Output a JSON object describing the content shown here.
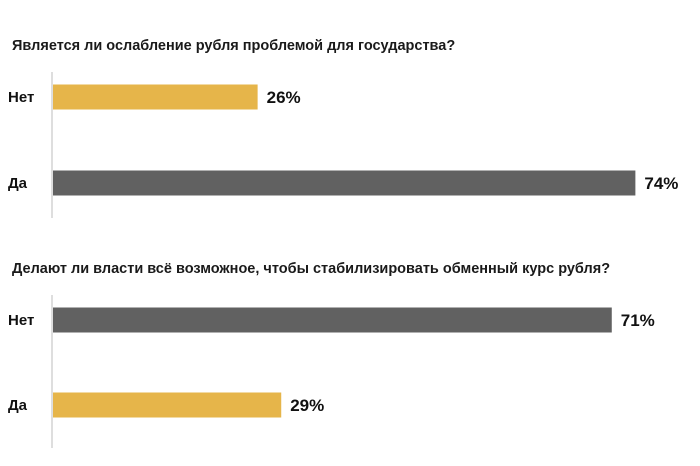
{
  "chart_data": [
    {
      "type": "bar",
      "orientation": "horizontal",
      "title": "Является ли ослабление рубля проблемой для государства?",
      "categories": [
        "Нет",
        "Да"
      ],
      "values": [
        26,
        74
      ],
      "value_labels": [
        "26%",
        "74%"
      ],
      "colors": [
        "#e6b54a",
        "#616161"
      ],
      "xlim": [
        0,
        100
      ],
      "unit": "%",
      "grid": false,
      "legend": "none"
    },
    {
      "type": "bar",
      "orientation": "horizontal",
      "title": "Делают ли власти всё возможное, чтобы стабилизировать обменный курс рубля?",
      "categories": [
        "Нет",
        "Да"
      ],
      "values": [
        71,
        29
      ],
      "value_labels": [
        "71%",
        "29%"
      ],
      "colors": [
        "#616161",
        "#e6b54a"
      ],
      "xlim": [
        0,
        100
      ],
      "unit": "%",
      "grid": false,
      "legend": "none"
    }
  ]
}
